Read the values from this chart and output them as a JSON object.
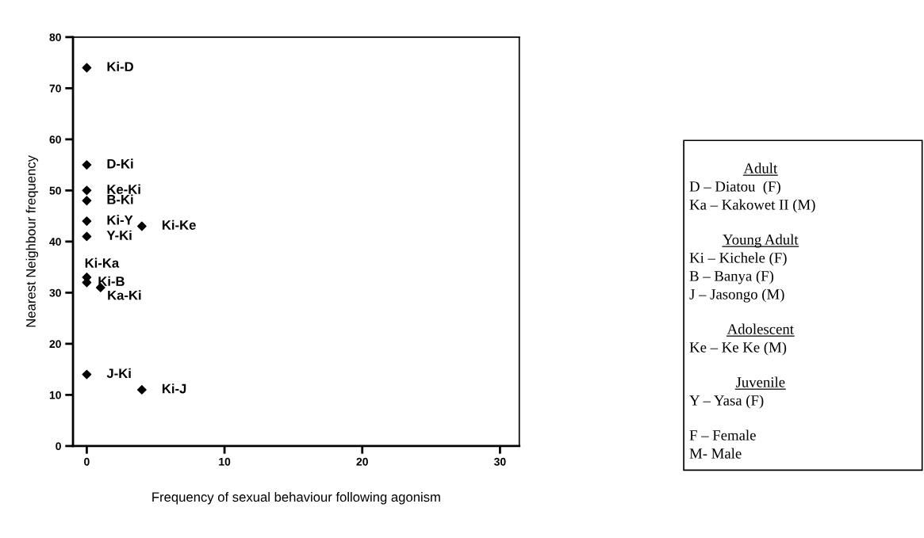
{
  "chart_data": {
    "type": "scatter",
    "xlabel": "Frequency of sexual behaviour following agonism",
    "ylabel": "Nearest Neighbour frequency",
    "x": [
      0,
      0,
      0,
      0,
      0,
      4,
      0,
      0,
      0,
      1,
      0,
      4
    ],
    "series": [
      {
        "color": "#000000",
        "marker": "diamond",
        "values": [
          74,
          55,
          50,
          48,
          44,
          43,
          41,
          33,
          32,
          31,
          14,
          11
        ],
        "value_labels": [
          "Ki-D",
          "D-Ki",
          "Ke-Ki",
          "B-Ki",
          "Ki-Y",
          "Ki-Ke",
          "Y-Ki",
          "Ki-Ka",
          "Ki-B",
          "Ka-Ki",
          "J-Ki",
          "Ki-J"
        ]
      }
    ],
    "xlim": [
      -1,
      31.4
    ],
    "xticks": [
      0,
      10,
      20,
      30
    ],
    "ylim": [
      0,
      80
    ],
    "yticks": [
      0,
      10,
      20,
      30,
      40,
      50,
      60,
      70,
      80
    ],
    "grid": false,
    "legend": false,
    "annotations": [
      "Adult",
      "D – Diatou  (F)",
      "Ka – Kakowet II (M)",
      "Young Adult",
      "Ki – Kichele (F)",
      "B – Banya (F)",
      "J – Jasongo (M)",
      "Adolescent",
      "Ke – Ke Ke (M)",
      "Juvenile",
      "Y – Yasa (F)",
      "F – Female",
      "M- Male"
    ]
  }
}
